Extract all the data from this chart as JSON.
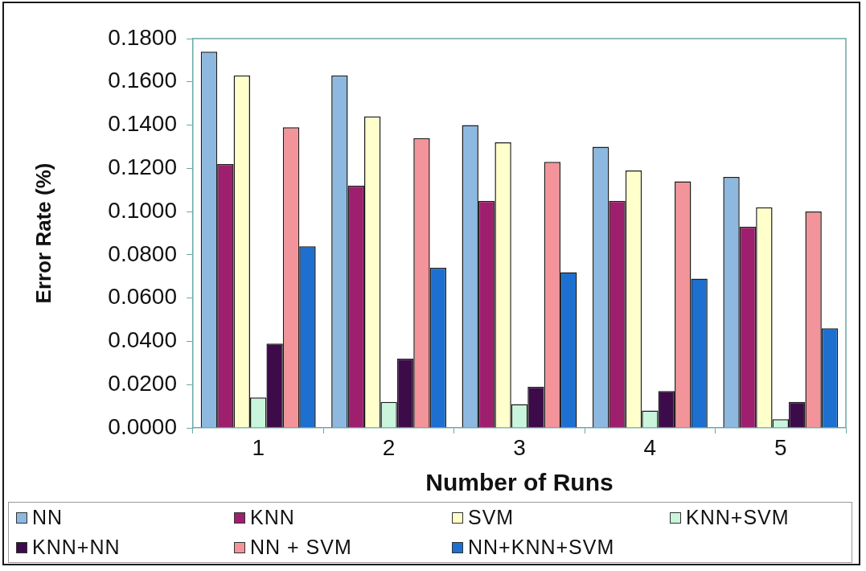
{
  "chart_data": {
    "type": "bar",
    "xlabel": "Number of Runs",
    "ylabel": "Error Rate (%)",
    "categories": [
      "1",
      "2",
      "3",
      "4",
      "5"
    ],
    "series": [
      {
        "name": "NN",
        "color": "#8db8e0",
        "values": [
          0.174,
          0.163,
          0.14,
          0.13,
          0.116
        ]
      },
      {
        "name": "KNN",
        "color": "#9e1f6e",
        "values": [
          0.122,
          0.112,
          0.105,
          0.105,
          0.093
        ]
      },
      {
        "name": "SVM",
        "color": "#ffffcc",
        "values": [
          0.163,
          0.144,
          0.132,
          0.119,
          0.102
        ]
      },
      {
        "name": "KNN+SVM",
        "color": "#c8f5dc",
        "values": [
          0.014,
          0.012,
          0.011,
          0.008,
          0.004
        ]
      },
      {
        "name": "KNN+NN",
        "color": "#3d0a4a",
        "values": [
          0.039,
          0.032,
          0.019,
          0.017,
          0.012
        ]
      },
      {
        "name": "NN + SVM",
        "color": "#f29499",
        "values": [
          0.139,
          0.134,
          0.123,
          0.114,
          0.1
        ]
      },
      {
        "name": "NN+KNN+SVM",
        "color": "#1d70cf",
        "values": [
          0.084,
          0.074,
          0.072,
          0.069,
          0.046
        ]
      }
    ],
    "ylim": [
      0,
      0.18
    ],
    "yticks": [
      {
        "value": 0,
        "label": "0.0000"
      },
      {
        "value": 0.02,
        "label": "0.0200"
      },
      {
        "value": 0.04,
        "label": "0.0400"
      },
      {
        "value": 0.06,
        "label": "0.0600"
      },
      {
        "value": 0.08,
        "label": "0.0800"
      },
      {
        "value": 0.1,
        "label": "0.1000"
      },
      {
        "value": 0.12,
        "label": "0.1200"
      },
      {
        "value": 0.14,
        "label": "0.1400"
      },
      {
        "value": 0.16,
        "label": "0.1600"
      },
      {
        "value": 0.18,
        "label": "0.1800"
      }
    ],
    "grid": false,
    "legend": "bottom"
  }
}
